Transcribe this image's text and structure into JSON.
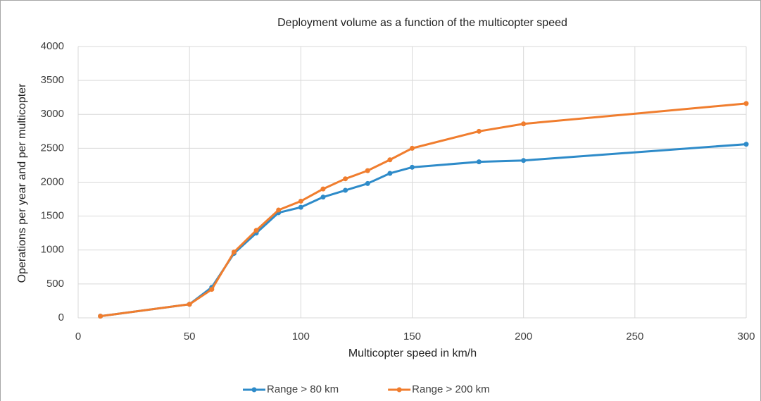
{
  "chart_data": {
    "type": "line",
    "title": "Deployment volume as a function of the multicopter speed",
    "x_label": "Multicopter speed in km/h",
    "y_label": "Operations per year and per multicopter",
    "x": [
      10,
      50,
      60,
      70,
      80,
      90,
      100,
      110,
      120,
      130,
      140,
      150,
      180,
      200,
      300
    ],
    "series": [
      {
        "name": "Range > 80 km",
        "color": "#2e8bc9",
        "values": [
          25,
          200,
          450,
          950,
          1250,
          1550,
          1630,
          1780,
          1880,
          1980,
          2130,
          2220,
          2300,
          2320,
          2560
        ]
      },
      {
        "name": "Range > 200 km",
        "color": "#f07d2e",
        "values": [
          25,
          200,
          420,
          970,
          1290,
          1590,
          1720,
          1900,
          2050,
          2170,
          2330,
          2500,
          2750,
          2860,
          3160
        ]
      }
    ],
    "xlim": [
      0,
      300
    ],
    "xticks": [
      0,
      50,
      100,
      150,
      200,
      250,
      300
    ],
    "ylim": [
      0,
      4000
    ],
    "yticks": [
      0,
      500,
      1000,
      1500,
      2000,
      2500,
      3000,
      3500,
      4000
    ],
    "grid": true,
    "legend": "bottom"
  }
}
